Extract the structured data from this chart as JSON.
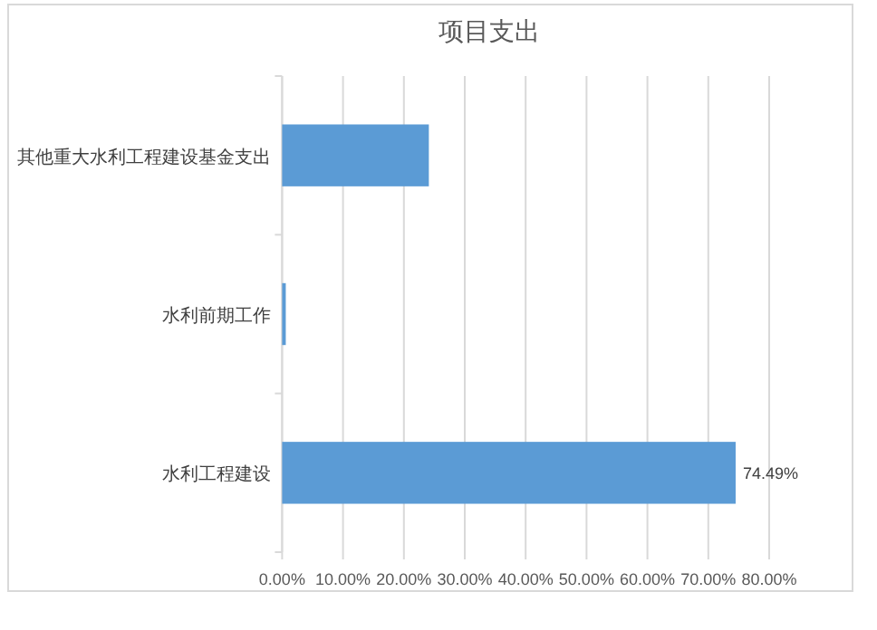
{
  "chart_data": {
    "type": "bar",
    "orientation": "horizontal",
    "title": "项目支出",
    "categories": [
      "其他重大水利工程建设基金支出",
      "水利前期工作",
      "水利工程建设"
    ],
    "values": [
      24.1,
      0.6,
      74.49
    ],
    "value_labels": [
      null,
      null,
      "74.49%"
    ],
    "color": "#5b9bd5",
    "xlim": [
      0,
      80
    ],
    "xticks": [
      {
        "value": 0,
        "label": "0.00%"
      },
      {
        "value": 10,
        "label": "10.00%"
      },
      {
        "value": 20,
        "label": "20.00%"
      },
      {
        "value": 30,
        "label": "30.00%"
      },
      {
        "value": 40,
        "label": "40.00%"
      },
      {
        "value": 50,
        "label": "50.00%"
      },
      {
        "value": 60,
        "label": "60.00%"
      },
      {
        "value": 70,
        "label": "70.00%"
      },
      {
        "value": 80,
        "label": "80.00%"
      }
    ],
    "grid": "x"
  }
}
